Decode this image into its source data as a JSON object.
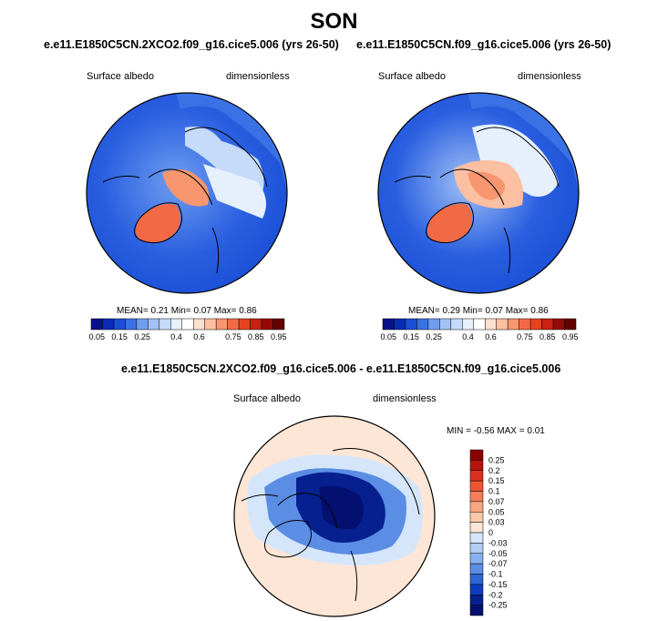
{
  "page": {
    "season": "SON"
  },
  "panels": [
    {
      "title": "e.e11.E1850C5CN.2XCO2.f09_g16.cice5.006 (yrs 26-50)",
      "variable": "Surface albedo",
      "units": "dimensionless",
      "stats": "MEAN=  0.21  Min=  0.07  Max=  0.86"
    },
    {
      "title": "e.e11.E1850C5CN.f09_g16.cice5.006 (yrs 26-50)",
      "variable": "Surface albedo",
      "units": "dimensionless",
      "stats": "MEAN=  0.29  Min=  0.07  Max=  0.86"
    },
    {
      "title": "e.e11.E1850C5CN.2XCO2.f09_g16.cice5.006 - e.e11.E1850C5CN.f09_g16.cice5.006",
      "variable": "Surface albedo",
      "units": "dimensionless",
      "stats": "MIN = -0.56 MAX =  0.01"
    }
  ],
  "chart_data": [
    {
      "type": "heatmap",
      "projection": "north-polar-stereographic",
      "title": "e.e11.E1850C5CN.2XCO2.f09_g16.cice5.006 (yrs 26-50)",
      "variable": "Surface albedo",
      "units": "dimensionless",
      "mean": 0.21,
      "min": 0.07,
      "max": 0.86,
      "colorbar": {
        "orientation": "horizontal",
        "levels": [
          0.05,
          0.1,
          0.15,
          0.2,
          0.25,
          0.3,
          0.35,
          0.4,
          0.5,
          0.6,
          0.65,
          0.7,
          0.75,
          0.8,
          0.85,
          0.9,
          0.95
        ],
        "tick_labels": [
          "0.05",
          "0.15",
          "0.25",
          "0.4",
          "0.6",
          "0.75",
          "0.85",
          "0.95"
        ],
        "colors": [
          "#08108a",
          "#0a2ab8",
          "#1a4fd6",
          "#3a72e6",
          "#6f9df0",
          "#a2c2f6",
          "#c6dbfa",
          "#e6f0fd",
          "#ffffff",
          "#fde0d0",
          "#fbbfa2",
          "#f8966f",
          "#f26a45",
          "#e64320",
          "#c82210",
          "#960a06",
          "#640000"
        ]
      }
    },
    {
      "type": "heatmap",
      "projection": "north-polar-stereographic",
      "title": "e.e11.E1850C5CN.f09_g16.cice5.006 (yrs 26-50)",
      "variable": "Surface albedo",
      "units": "dimensionless",
      "mean": 0.29,
      "min": 0.07,
      "max": 0.86,
      "colorbar": {
        "orientation": "horizontal",
        "levels": [
          0.05,
          0.1,
          0.15,
          0.2,
          0.25,
          0.3,
          0.35,
          0.4,
          0.5,
          0.6,
          0.65,
          0.7,
          0.75,
          0.8,
          0.85,
          0.9,
          0.95
        ],
        "tick_labels": [
          "0.05",
          "0.15",
          "0.25",
          "0.4",
          "0.6",
          "0.75",
          "0.85",
          "0.95"
        ],
        "colors": [
          "#08108a",
          "#0a2ab8",
          "#1a4fd6",
          "#3a72e6",
          "#6f9df0",
          "#a2c2f6",
          "#c6dbfa",
          "#e6f0fd",
          "#ffffff",
          "#fde0d0",
          "#fbbfa2",
          "#f8966f",
          "#f26a45",
          "#e64320",
          "#c82210",
          "#960a06",
          "#640000"
        ]
      }
    },
    {
      "type": "heatmap",
      "projection": "north-polar-stereographic",
      "title": "e.e11.E1850C5CN.2XCO2.f09_g16.cice5.006 - e.e11.E1850C5CN.f09_g16.cice5.006",
      "variable": "Surface albedo",
      "units": "dimensionless",
      "min": -0.56,
      "max": 0.01,
      "colorbar": {
        "orientation": "vertical",
        "tick_labels": [
          "0.25",
          "0.2",
          "0.15",
          "0.1",
          "0.07",
          "0.05",
          "0.03",
          "0",
          "-0.03",
          "-0.05",
          "-0.07",
          "-0.1",
          "-0.15",
          "-0.2",
          "-0.25"
        ],
        "colors": [
          "#8b0000",
          "#b5130c",
          "#d9301d",
          "#ee5533",
          "#f57d58",
          "#f9a582",
          "#fcc8ac",
          "#fde6d6",
          "#d6e6fa",
          "#b0cdf4",
          "#87b0ee",
          "#5b8de4",
          "#2f65d6",
          "#0e3cbf",
          "#06208f",
          "#041070"
        ]
      }
    }
  ]
}
